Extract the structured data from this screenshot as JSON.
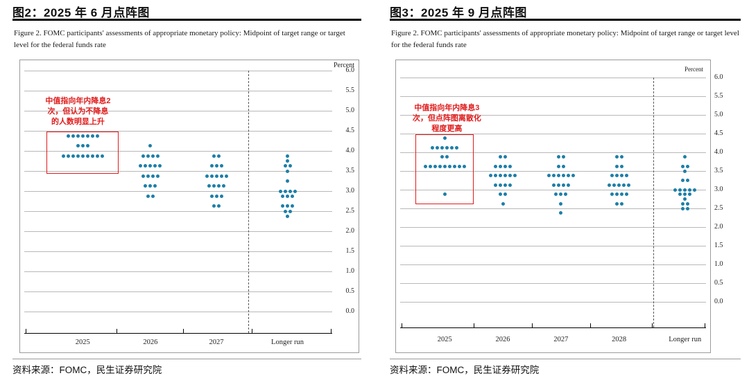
{
  "panels": [
    {
      "title": "图2：2025 年 6 月点阵图",
      "caption": "Figure 2.  FOMC participants' assessments of appropriate monetary policy: Midpoint of target range or target level for the federal funds rate",
      "source": "资料来源：FOMC，民生证券研究院"
    },
    {
      "title": "图3：2025 年 9 月点阵图",
      "caption": "Figure 2.  FOMC participants' assessments of appropriate monetary policy: Midpoint of target range or target level for the federal funds rate",
      "source": "资料来源：FOMC，民生证券研究院"
    }
  ],
  "chart_data": [
    {
      "type": "scatter",
      "title": "2025年6月FOMC点阵图",
      "ylabel": "Percent",
      "ylim": [
        0.0,
        6.0
      ],
      "ytick_step": 0.5,
      "yticks": [
        "6.0",
        "5.5",
        "5.0",
        "4.5",
        "4.0",
        "3.5",
        "3.0",
        "2.5",
        "2.0",
        "1.5",
        "1.0",
        "0.5",
        "0.0"
      ],
      "grid": true,
      "legend": "none",
      "categories": [
        "2025",
        "2026",
        "2027",
        "Longer run"
      ],
      "dot_color": "#1d7fa8",
      "series": [
        {
          "category": "2025",
          "dots": [
            {
              "rate": 4.375,
              "count": 7
            },
            {
              "rate": 4.125,
              "count": 3
            },
            {
              "rate": 3.875,
              "count": 9
            }
          ]
        },
        {
          "category": "2026",
          "dots": [
            {
              "rate": 4.125,
              "count": 1
            },
            {
              "rate": 3.875,
              "count": 4
            },
            {
              "rate": 3.625,
              "count": 5
            },
            {
              "rate": 3.375,
              "count": 4
            },
            {
              "rate": 3.125,
              "count": 3
            },
            {
              "rate": 2.875,
              "count": 2
            }
          ]
        },
        {
          "category": "2027",
          "dots": [
            {
              "rate": 3.875,
              "count": 2
            },
            {
              "rate": 3.625,
              "count": 3
            },
            {
              "rate": 3.375,
              "count": 5
            },
            {
              "rate": 3.125,
              "count": 4
            },
            {
              "rate": 2.875,
              "count": 3
            },
            {
              "rate": 2.625,
              "count": 2
            }
          ]
        },
        {
          "category": "Longer run",
          "dots": [
            {
              "rate": 3.875,
              "count": 1
            },
            {
              "rate": 3.75,
              "count": 1
            },
            {
              "rate": 3.625,
              "count": 2
            },
            {
              "rate": 3.5,
              "count": 1
            },
            {
              "rate": 3.25,
              "count": 1
            },
            {
              "rate": 3.0,
              "count": 4
            },
            {
              "rate": 2.875,
              "count": 3
            },
            {
              "rate": 2.625,
              "count": 3
            },
            {
              "rate": 2.5,
              "count": 2
            },
            {
              "rate": 2.375,
              "count": 1
            }
          ]
        }
      ],
      "annotation": {
        "lines": [
          "中值指向年内降息2",
          "次，但认为不降息",
          "的人数明显上升"
        ],
        "color": "#e01b1b"
      },
      "highlight_box": {
        "category": "2025",
        "rate_top": 4.48,
        "rate_bottom": 3.43,
        "color": "#e01b1b"
      }
    },
    {
      "type": "scatter",
      "title": "2025年9月FOMC点阵图",
      "ylabel": "Percent",
      "ylim": [
        0.0,
        6.0
      ],
      "ytick_step": 0.5,
      "yticks": [
        "6.0",
        "5.5",
        "5.0",
        "4.5",
        "4.0",
        "3.5",
        "3.0",
        "2.5",
        "2.0",
        "1.5",
        "1.0",
        "0.5",
        "0.0"
      ],
      "grid": true,
      "legend": "none",
      "categories": [
        "2025",
        "2026",
        "2027",
        "2028",
        "Longer run"
      ],
      "dot_color": "#1d7fa8",
      "series": [
        {
          "category": "2025",
          "dots": [
            {
              "rate": 4.375,
              "count": 1
            },
            {
              "rate": 4.125,
              "count": 6
            },
            {
              "rate": 3.875,
              "count": 2
            },
            {
              "rate": 3.625,
              "count": 9
            },
            {
              "rate": 2.875,
              "count": 1
            }
          ]
        },
        {
          "category": "2026",
          "dots": [
            {
              "rate": 3.875,
              "count": 2
            },
            {
              "rate": 3.625,
              "count": 4
            },
            {
              "rate": 3.375,
              "count": 6
            },
            {
              "rate": 3.125,
              "count": 4
            },
            {
              "rate": 2.875,
              "count": 2
            },
            {
              "rate": 2.625,
              "count": 1
            }
          ]
        },
        {
          "category": "2027",
          "dots": [
            {
              "rate": 3.875,
              "count": 2
            },
            {
              "rate": 3.625,
              "count": 2
            },
            {
              "rate": 3.375,
              "count": 6
            },
            {
              "rate": 3.125,
              "count": 4
            },
            {
              "rate": 2.875,
              "count": 3
            },
            {
              "rate": 2.625,
              "count": 1
            },
            {
              "rate": 2.375,
              "count": 1
            }
          ]
        },
        {
          "category": "2028",
          "dots": [
            {
              "rate": 3.875,
              "count": 2
            },
            {
              "rate": 3.625,
              "count": 2
            },
            {
              "rate": 3.375,
              "count": 4
            },
            {
              "rate": 3.125,
              "count": 5
            },
            {
              "rate": 2.875,
              "count": 4
            },
            {
              "rate": 2.625,
              "count": 2
            }
          ]
        },
        {
          "category": "Longer run",
          "dots": [
            {
              "rate": 3.875,
              "count": 1
            },
            {
              "rate": 3.625,
              "count": 2
            },
            {
              "rate": 3.5,
              "count": 1
            },
            {
              "rate": 3.25,
              "count": 2
            },
            {
              "rate": 3.0,
              "count": 5
            },
            {
              "rate": 2.875,
              "count": 3
            },
            {
              "rate": 2.75,
              "count": 1
            },
            {
              "rate": 2.625,
              "count": 2
            },
            {
              "rate": 2.5,
              "count": 2
            }
          ]
        }
      ],
      "annotation": {
        "lines": [
          "中值指向年内降息3",
          "次，但点阵图离散化",
          "程度更高"
        ],
        "color": "#e01b1b"
      },
      "highlight_box": {
        "category": "2025",
        "rate_top": 4.48,
        "rate_bottom": 2.62,
        "color": "#e01b1b"
      }
    }
  ]
}
